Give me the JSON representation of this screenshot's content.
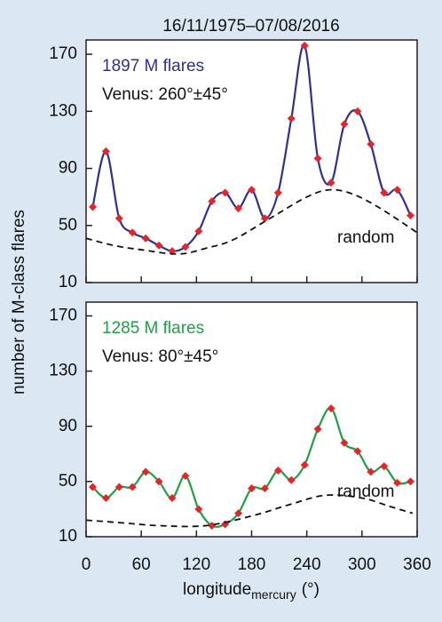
{
  "title": "16/11/1975–07/08/2016",
  "ylabel": "number of M-class flares",
  "xlabel": {
    "main": "longitude",
    "sub": "mercury",
    "unit": "(°)"
  },
  "chart_data": [
    {
      "type": "line",
      "label": "1897 M flares",
      "annotation": "Venus: 260°±45°",
      "xlim": [
        0,
        360
      ],
      "xticks": [
        0,
        60,
        120,
        180,
        240,
        300,
        360
      ],
      "show_xtick_labels": false,
      "ylim": [
        10,
        180
      ],
      "yticks": [
        10,
        50,
        90,
        130,
        170
      ],
      "series": [
        {
          "color": "#2e3192",
          "marker_color": "#e3262b",
          "x": [
            7.2,
            21.6,
            36,
            50.4,
            64.8,
            79.2,
            93.6,
            108,
            122.4,
            136.8,
            151.2,
            165.6,
            180,
            194.4,
            208.8,
            223.2,
            237.6,
            252,
            266.4,
            280.8,
            295.2,
            309.6,
            324,
            338.4,
            352.8
          ],
          "values": [
            63,
            102,
            55,
            45,
            41,
            36,
            32,
            35,
            46,
            67,
            73,
            62,
            75,
            55,
            73,
            125,
            176,
            97,
            80,
            121,
            130,
            107,
            73,
            75,
            57
          ]
        },
        {
          "name": "random",
          "color": "#111111",
          "dashed": true,
          "x": [
            0,
            30,
            60,
            100,
            130,
            160,
            200,
            240,
            265,
            290,
            320,
            360
          ],
          "values": [
            41,
            36,
            33,
            30,
            34,
            40,
            55,
            70,
            75,
            72,
            62,
            45
          ]
        }
      ]
    },
    {
      "type": "line",
      "label": "1285 M flares",
      "annotation": "Venus: 80°±45°",
      "xlim": [
        0,
        360
      ],
      "xticks": [
        0,
        60,
        120,
        180,
        240,
        300,
        360
      ],
      "show_xtick_labels": true,
      "ylim": [
        10,
        180
      ],
      "yticks": [
        10,
        50,
        90,
        130,
        170
      ],
      "series": [
        {
          "color": "#1fa045",
          "marker_color": "#e3262b",
          "x": [
            7.2,
            21.6,
            36,
            50.4,
            64.8,
            79.2,
            93.6,
            108,
            122.4,
            136.8,
            151.2,
            165.6,
            180,
            194.4,
            208.8,
            223.2,
            237.6,
            252,
            266.4,
            280.8,
            295.2,
            309.6,
            324,
            338.4,
            352.8
          ],
          "values": [
            46,
            38,
            46,
            46,
            57,
            50,
            38,
            54,
            30,
            18,
            19,
            27,
            45,
            45,
            58,
            51,
            62,
            88,
            103,
            78,
            72,
            57,
            61,
            49,
            50
          ]
        },
        {
          "name": "random",
          "color": "#111111",
          "dashed": true,
          "x": [
            0,
            40,
            80,
            130,
            180,
            220,
            260,
            300,
            330,
            355
          ],
          "values": [
            22,
            20,
            18,
            18,
            25,
            33,
            40,
            38,
            32,
            27
          ]
        }
      ]
    }
  ]
}
